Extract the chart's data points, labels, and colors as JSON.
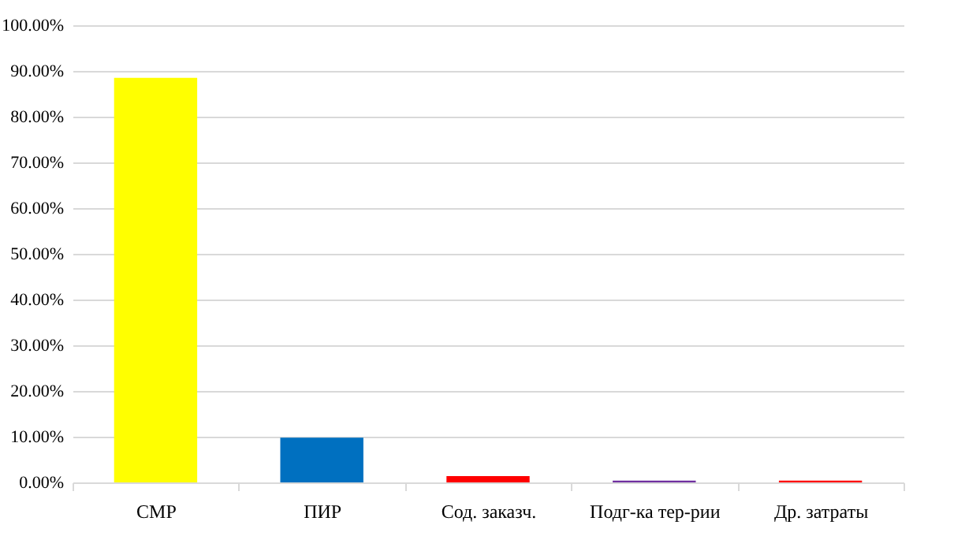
{
  "chart_data": {
    "type": "bar",
    "categories": [
      "СМР",
      "ПИР",
      "Сод. заказч.",
      "Подг-ка тер-рии",
      "Др. затраты"
    ],
    "values": [
      88.5,
      9.8,
      1.4,
      0.4,
      0.4
    ],
    "colors": [
      "#ffff00",
      "#0070c0",
      "#ff0000",
      "#7030a0",
      "#ff0000"
    ],
    "ylim": [
      0,
      100
    ],
    "yticks": [
      {
        "value": 0,
        "label": "0.00%"
      },
      {
        "value": 10,
        "label": "10.00%"
      },
      {
        "value": 20,
        "label": "20.00%"
      },
      {
        "value": 30,
        "label": "30.00%"
      },
      {
        "value": 40,
        "label": "40.00%"
      },
      {
        "value": 50,
        "label": "50.00%"
      },
      {
        "value": 60,
        "label": "60.00%"
      },
      {
        "value": 70,
        "label": "70.00%"
      },
      {
        "value": 80,
        "label": "80.00%"
      },
      {
        "value": 90,
        "label": "90.00%"
      },
      {
        "value": 100,
        "label": "100.00%"
      }
    ],
    "grid": "y"
  }
}
